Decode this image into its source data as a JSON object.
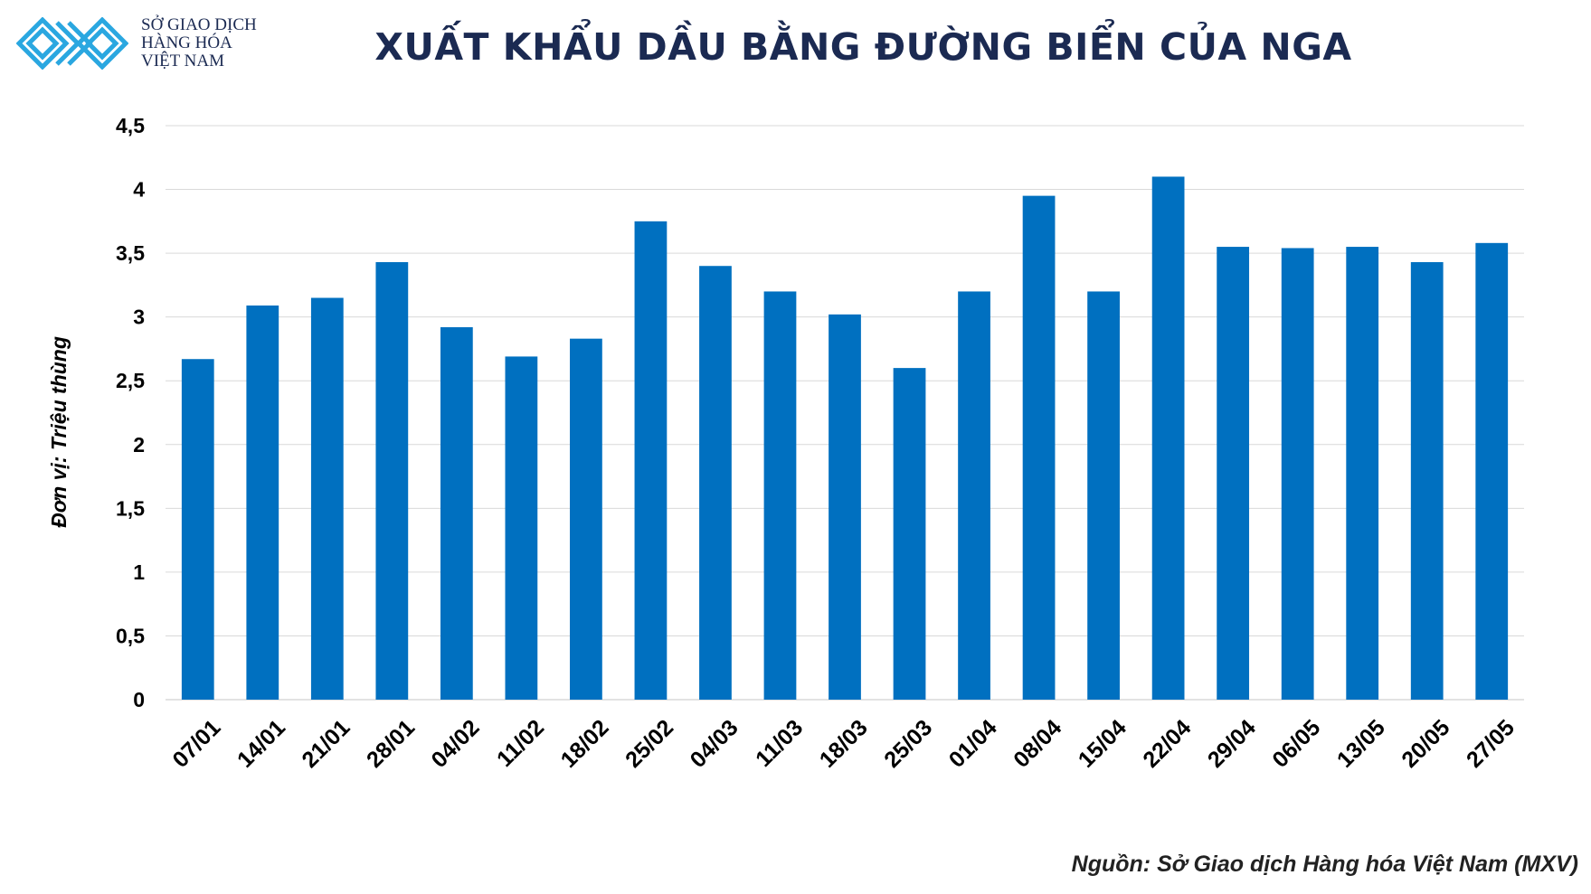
{
  "logo": {
    "line1": "SỞ GIAO DỊCH",
    "line2": "HÀNG HÓA",
    "line3": "VIỆT NAM",
    "trademark": "TM",
    "color": "#2aa7e0"
  },
  "title": "XUẤT KHẨU DẦU BẰNG ĐƯỜNG BIỂN CỦA NGA",
  "source": "Nguồn: Sở Giao dịch Hàng hóa Việt Nam (MXV)",
  "chart_data": {
    "type": "bar",
    "title": "XUẤT KHẨU DẦU BẰNG ĐƯỜNG BIỂN CỦA NGA",
    "xlabel": "",
    "ylabel": "Đơn vị: Triệu thùng",
    "ylim": [
      0,
      4.5
    ],
    "yticks": [
      "0",
      "0,5",
      "1",
      "1,5",
      "2",
      "2,5",
      "3",
      "3,5",
      "4",
      "4,5"
    ],
    "grid": true,
    "bar_color": "#0070c0",
    "categories": [
      "07/01",
      "14/01",
      "21/01",
      "28/01",
      "04/02",
      "11/02",
      "18/02",
      "25/02",
      "04/03",
      "11/03",
      "18/03",
      "25/03",
      "01/04",
      "08/04",
      "15/04",
      "22/04",
      "29/04",
      "06/05",
      "13/05",
      "20/05",
      "27/05"
    ],
    "values": [
      2.67,
      3.09,
      3.15,
      3.43,
      2.92,
      2.69,
      2.83,
      3.75,
      3.4,
      3.2,
      3.02,
      2.6,
      3.2,
      3.95,
      3.2,
      4.1,
      3.55,
      3.54,
      3.55,
      3.43,
      3.58
    ]
  }
}
